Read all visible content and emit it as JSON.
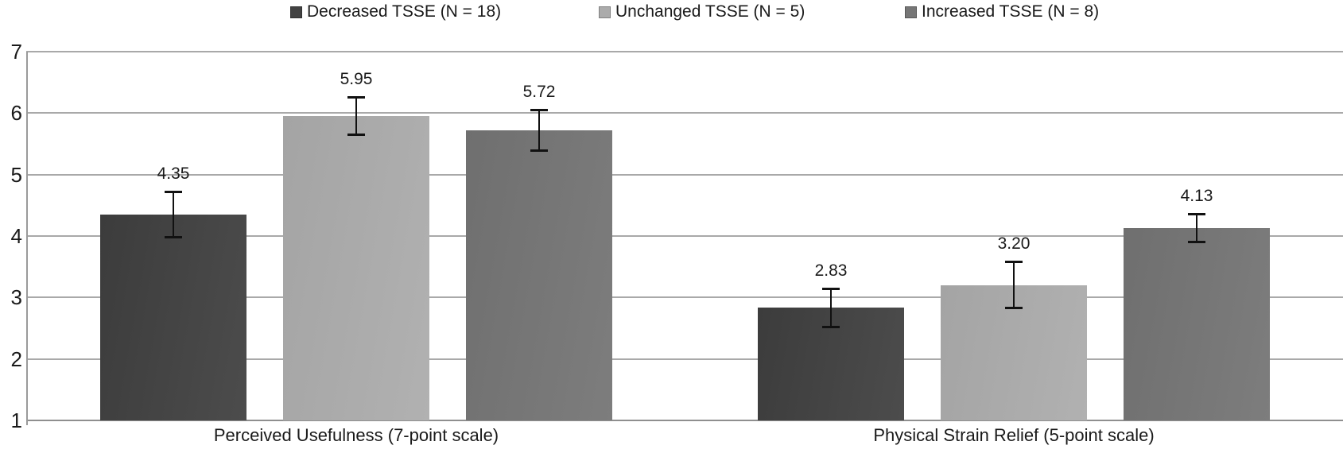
{
  "chart_data": {
    "type": "bar",
    "title": "",
    "categories": [
      "Perceived Usefulness (7-point scale)",
      "Physical Strain Relief (5-point scale)"
    ],
    "series": [
      {
        "name": "Decreased TSSE (N = 18)",
        "color": "#424242",
        "color_light": "#4c4c4c",
        "color_dark": "#3c3c3c",
        "values": [
          4.35,
          2.83
        ],
        "errors": [
          0.38,
          0.32
        ]
      },
      {
        "name": "Unchanged TSSE (N = 5)",
        "color": "#ababab",
        "color_light": "#b1b1b1",
        "color_dark": "#a4a4a4",
        "values": [
          5.95,
          3.2
        ],
        "errors": [
          0.31,
          0.38
        ]
      },
      {
        "name": "Increased TSSE (N = 8)",
        "color": "#767676",
        "color_light": "#7d7d7d",
        "color_dark": "#6f6f6f",
        "values": [
          5.72,
          4.13
        ],
        "errors": [
          0.33,
          0.23
        ]
      }
    ],
    "value_labels": [
      "4.35",
      "5.95",
      "5.72",
      "2.83",
      "3.20",
      "4.13"
    ],
    "xlabel": "",
    "ylabel": "",
    "ylim": [
      1,
      7
    ],
    "yticks": [
      1,
      2,
      3,
      4,
      5,
      6,
      7
    ],
    "grid": true,
    "error_bars": true,
    "legend_position": "top"
  },
  "colors": {
    "gridline": "#a9a9a9",
    "axis": "#9a9a9a",
    "error_bar": "#111111",
    "text": "#1a1a1a",
    "background": "#ffffff"
  }
}
